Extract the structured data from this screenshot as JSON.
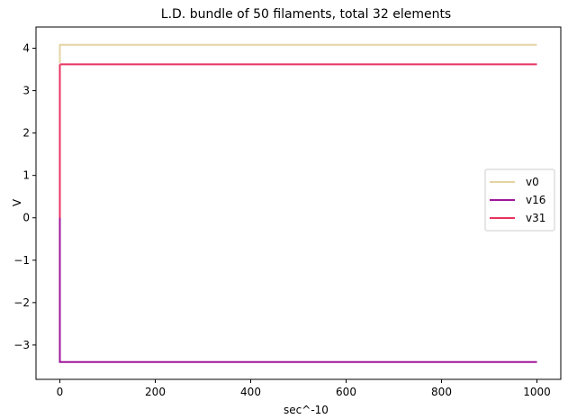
{
  "chart_data": {
    "type": "line",
    "title": "L.D. bundle of 50 filaments, total 32 elements",
    "xlabel": "sec^-10",
    "ylabel": "V",
    "xlim": [
      -50,
      1050
    ],
    "ylim": [
      -3.81,
      4.5
    ],
    "xticks": [
      0,
      200,
      400,
      600,
      800,
      1000
    ],
    "xtick_labels": [
      "0",
      "200",
      "400",
      "600",
      "800",
      "1000"
    ],
    "yticks": [
      -3,
      -2,
      -1,
      0,
      1,
      2,
      3,
      4
    ],
    "ytick_labels": [
      "−3",
      "−2",
      "−1",
      "0",
      "1",
      "2",
      "3",
      "4"
    ],
    "grid": false,
    "legend_position": "center-right",
    "series": [
      {
        "name": "v0",
        "color": "#e6d3a3",
        "x": [
          0,
          0,
          1000
        ],
        "y": [
          3.65,
          4.08,
          4.08
        ]
      },
      {
        "name": "v16",
        "color": "#a0169a",
        "x": [
          0,
          0,
          1000
        ],
        "y": [
          0.0,
          -3.4,
          -3.4
        ]
      },
      {
        "name": "v31",
        "color": "#e8335f",
        "x": [
          0,
          0,
          1000
        ],
        "y": [
          3.62,
          3.62,
          3.62
        ]
      }
    ],
    "extra_segments": [
      {
        "series": "v31",
        "x": [
          0,
          0
        ],
        "y": [
          -3.4,
          3.62
        ]
      }
    ]
  }
}
